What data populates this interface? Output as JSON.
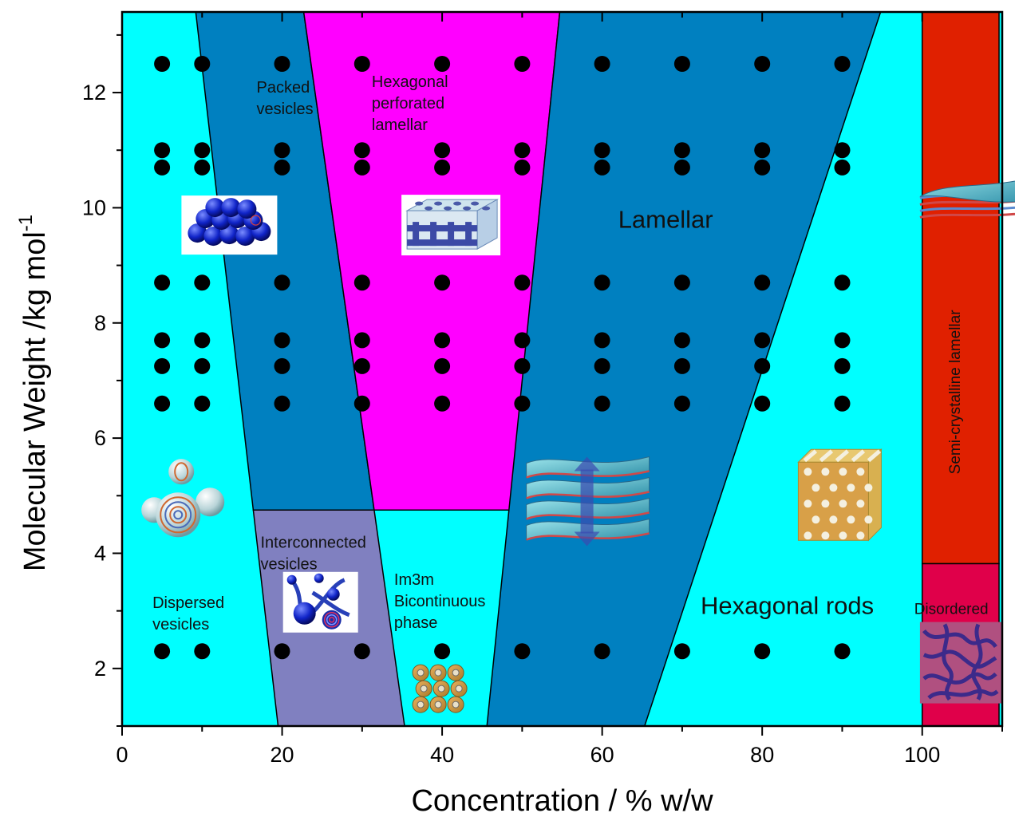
{
  "chart_data": {
    "type": "scatter",
    "title": "",
    "xlabel": "Concentration / % w/w",
    "ylabel": "Molecular Weight /kg mol",
    "ylabel_superscript": "-1",
    "xlim": [
      0,
      110
    ],
    "ylim": [
      1,
      13.4
    ],
    "xticks": [
      "0",
      "20",
      "40",
      "60",
      "80",
      "100"
    ],
    "yticks": [
      "2",
      "4",
      "6",
      "8",
      "10",
      "12"
    ],
    "grid": false,
    "background_color": "#00ffff",
    "region_colors": {
      "dispersed": "#00ffff",
      "packed": "#0080c0",
      "hpl": "#ff00ff",
      "interconnected": "#8080c0",
      "bicontinuous": "#00ffff",
      "lamellar": "#0080c0",
      "hexagonal": "#00ffff",
      "semicrystalline": "#e02000",
      "disordered": "#e0004a"
    },
    "regions": [
      {
        "key": "packed",
        "points": [
          [
            9.2,
            13.4
          ],
          [
            22.7,
            13.4
          ],
          [
            31.5,
            4.75
          ],
          [
            16.4,
            4.75
          ]
        ]
      },
      {
        "key": "hpl",
        "points": [
          [
            22.7,
            13.4
          ],
          [
            54.7,
            13.4
          ],
          [
            48.4,
            4.75
          ],
          [
            31.5,
            4.75
          ]
        ]
      },
      {
        "key": "interconnected",
        "points": [
          [
            16.4,
            4.75
          ],
          [
            31.5,
            4.75
          ],
          [
            35.3,
            1.0
          ],
          [
            19.5,
            1.0
          ]
        ]
      },
      {
        "key": "lamellar",
        "points": [
          [
            54.7,
            13.4
          ],
          [
            94.8,
            13.4
          ],
          [
            65.3,
            1.0
          ],
          [
            45.6,
            1.0
          ]
        ]
      },
      {
        "key": "semicrystalline",
        "points": [
          [
            100,
            13.4
          ],
          [
            109.6,
            13.4
          ],
          [
            109.6,
            3.82
          ],
          [
            100,
            3.82
          ]
        ]
      },
      {
        "key": "disordered",
        "points": [
          [
            100,
            3.82
          ],
          [
            109.6,
            3.82
          ],
          [
            109.6,
            1.0
          ],
          [
            100,
            1.0
          ]
        ]
      }
    ],
    "labels": [
      {
        "lines": [
          "Packed",
          "vesicles"
        ],
        "x": 16.8,
        "y": 12.0,
        "size": 20
      },
      {
        "lines": [
          "Hexagonal",
          "perforated",
          "lamellar"
        ],
        "x": 31.2,
        "y": 12.1,
        "size": 20
      },
      {
        "lines": [
          "Lamellar"
        ],
        "x": 62.0,
        "y": 9.65,
        "size": 31
      },
      {
        "lines": [
          "Interconnected",
          "vesicles"
        ],
        "x": 17.3,
        "y": 4.1,
        "size": 20
      },
      {
        "lines": [
          "Dispersed",
          "vesicles"
        ],
        "x": 3.8,
        "y": 3.05,
        "size": 20
      },
      {
        "lines": [
          "Im3m",
          "Bicontinuous",
          "phase"
        ],
        "x": 34.0,
        "y": 3.45,
        "size": 20
      },
      {
        "lines": [
          "Hexagonal rods"
        ],
        "x": 72.3,
        "y": 2.95,
        "size": 31
      },
      {
        "lines": [
          "Disordered"
        ],
        "x": 99.0,
        "y": 2.95,
        "size": 19
      }
    ],
    "vertical_labels": [
      {
        "text": "Semi-crystalline lamellar",
        "x": 104.7,
        "y": 6.8,
        "size": 19
      }
    ],
    "series": [
      {
        "x": [
          5,
          10,
          20,
          30,
          40,
          50,
          60,
          70,
          80,
          90
        ],
        "y": [
          12.5,
          12.5,
          12.5,
          12.5,
          12.5,
          12.5,
          12.5,
          12.5,
          12.5,
          12.5
        ]
      },
      {
        "x": [
          5,
          10,
          20,
          30,
          40,
          50,
          60,
          70,
          80,
          90
        ],
        "y": [
          11.0,
          11.0,
          11.0,
          11.0,
          11.0,
          11.0,
          11.0,
          11.0,
          11.0,
          11.0
        ]
      },
      {
        "x": [
          5,
          10,
          20,
          30,
          40,
          50,
          60,
          70,
          80,
          90
        ],
        "y": [
          10.7,
          10.7,
          10.7,
          10.7,
          10.7,
          10.7,
          10.7,
          10.7,
          10.7,
          10.7
        ]
      },
      {
        "x": [
          5,
          10,
          20,
          30,
          40,
          50,
          60,
          70,
          80,
          90
        ],
        "y": [
          8.7,
          8.7,
          8.7,
          8.7,
          8.7,
          8.7,
          8.7,
          8.7,
          8.7,
          8.7
        ]
      },
      {
        "x": [
          5,
          10,
          20,
          30,
          40,
          50,
          60,
          70,
          80,
          90
        ],
        "y": [
          7.7,
          7.7,
          7.7,
          7.7,
          7.7,
          7.7,
          7.7,
          7.7,
          7.7,
          7.7
        ]
      },
      {
        "x": [
          5,
          10,
          20,
          30,
          40,
          50,
          60,
          70,
          80,
          90
        ],
        "y": [
          7.25,
          7.25,
          7.25,
          7.25,
          7.25,
          7.25,
          7.25,
          7.25,
          7.25,
          7.25
        ]
      },
      {
        "x": [
          5,
          10,
          20,
          30,
          40,
          50,
          60,
          70,
          80,
          90
        ],
        "y": [
          6.6,
          6.6,
          6.6,
          6.6,
          6.6,
          6.6,
          6.6,
          6.6,
          6.6,
          6.6
        ]
      },
      {
        "x": [
          5,
          10,
          20,
          30,
          40,
          50,
          60,
          70,
          80,
          90
        ],
        "y": [
          2.3,
          2.3,
          2.3,
          2.3,
          2.3,
          2.3,
          2.3,
          2.3,
          2.3,
          2.3
        ]
      }
    ],
    "icons": [
      {
        "name": "packed-vesicles-icon",
        "x": 13.4,
        "y": 9.7
      },
      {
        "name": "perforated-lamellar-icon",
        "x": 41.1,
        "y": 9.7
      },
      {
        "name": "dispersed-vesicles-icon",
        "x": 7.0,
        "y": 5.0
      },
      {
        "name": "interconnected-vesicles-icon",
        "x": 24.8,
        "y": 3.15
      },
      {
        "name": "bicontinuous-cube-icon",
        "x": 39.5,
        "y": 1.65
      },
      {
        "name": "lamellar-stack-icon",
        "x": 58.1,
        "y": 4.9
      },
      {
        "name": "hexagonal-rods-icon",
        "x": 89.7,
        "y": 5.0
      },
      {
        "name": "semicrystalline-sheets-icon",
        "x": 107.5,
        "y": 10.0
      },
      {
        "name": "disordered-pattern-icon",
        "x": 104.8,
        "y": 2.1
      }
    ]
  }
}
